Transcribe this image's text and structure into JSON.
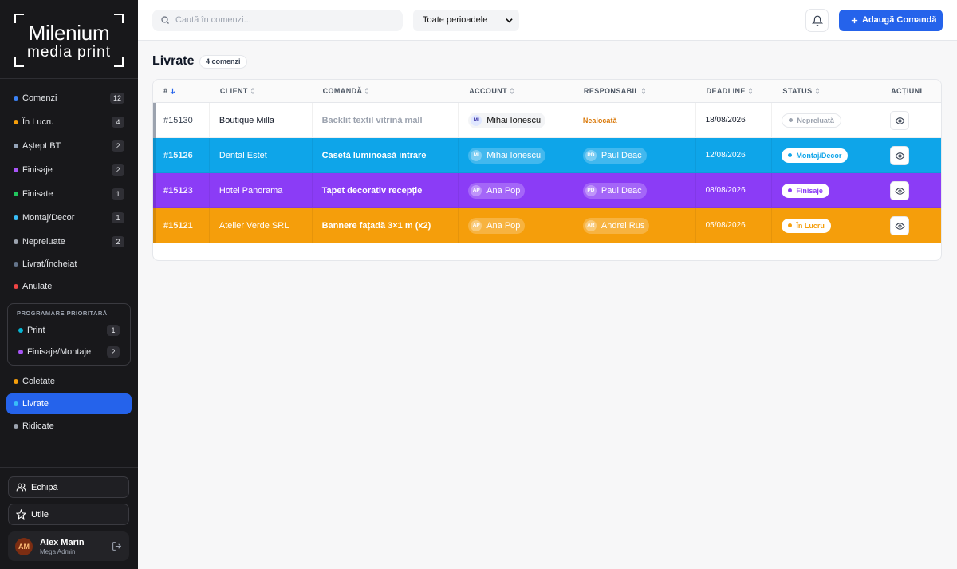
{
  "brand": {
    "line1": "Milenium",
    "line2": "media print"
  },
  "sidebar": {
    "items": [
      {
        "label": "Comenzi",
        "count": 12,
        "color": "#3b82f6"
      },
      {
        "label": "În Lucru",
        "count": 4,
        "color": "#f59e0b"
      },
      {
        "label": "Aștept BT",
        "count": 2,
        "color": "#94a3b8"
      },
      {
        "label": "Finisaje",
        "count": 2,
        "color": "#a855f7"
      },
      {
        "label": "Finisate",
        "count": 1,
        "color": "#22c55e"
      },
      {
        "label": "Montaj/Decor",
        "count": 1,
        "color": "#38bdf8"
      },
      {
        "label": "Nepreluate",
        "count": 2,
        "color": "#9ca3af"
      },
      {
        "label": "Livrat/Încheiat",
        "color": "#64748b"
      },
      {
        "label": "Anulate",
        "color": "#ef4444"
      }
    ],
    "priority": {
      "title": "PROGRAMARE PRIORITARĂ",
      "items": [
        {
          "label": "Print",
          "count": 1,
          "color": "#06b6d4"
        },
        {
          "label": "Finisaje/Montaje",
          "count": 2,
          "color": "#a855f7"
        }
      ]
    },
    "items2": [
      {
        "label": "Coletate",
        "color": "#f59e0b"
      },
      {
        "label": "Livrate",
        "color": "#38bdf8",
        "active": true
      },
      {
        "label": "Ridicate",
        "color": "#9ca3af"
      }
    ],
    "team": "Echipă",
    "useful": "Utile",
    "user": {
      "initials": "AM",
      "name": "Alex Marin",
      "role": "Mega Admin"
    }
  },
  "topbar": {
    "search_placeholder": "Caută în comenzi...",
    "period": "Toate perioadele",
    "add": "Adaugă Comandă"
  },
  "page": {
    "title": "Livrate",
    "count": "4 comenzi"
  },
  "table": {
    "headers": [
      "#",
      "CLIENT",
      "COMANDĂ",
      "ACCOUNT",
      "RESPONSABIL",
      "DEADLINE",
      "STATUS",
      "ACȚIUNI"
    ],
    "rows": [
      {
        "id": "#15130",
        "client": "Boutique Milla",
        "order": "Backlit textil vitrină mall",
        "account": {
          "initials": "MI",
          "name": "Mihai Ionescu"
        },
        "responsible": {
          "name": "Nealocată"
        },
        "deadline": "18/08/2026",
        "status": "Nepreluată",
        "color": "#ffffff",
        "status_color": "#9ca3af"
      },
      {
        "id": "#15126",
        "client": "Dental Estet",
        "order": "Casetă luminoasă intrare",
        "account": {
          "initials": "MI",
          "name": "Mihai Ionescu"
        },
        "responsible": {
          "initials": "PD",
          "name": "Paul Deac"
        },
        "deadline": "12/08/2026",
        "status": "Montaj/Decor",
        "color": "#0ea5e9",
        "status_color": "#0ea5e9"
      },
      {
        "id": "#15123",
        "client": "Hotel Panorama",
        "order": "Tapet decorativ recepție",
        "account": {
          "initials": "AP",
          "name": "Ana Pop"
        },
        "responsible": {
          "initials": "PD",
          "name": "Paul Deac"
        },
        "deadline": "08/08/2026",
        "status": "Finisaje",
        "color": "#8b3cf6",
        "status_color": "#8b3cf6"
      },
      {
        "id": "#15121",
        "client": "Atelier Verde SRL",
        "order": "Bannere fațadă 3×1 m (x2)",
        "account": {
          "initials": "AP",
          "name": "Ana Pop"
        },
        "responsible": {
          "initials": "AR",
          "name": "Andrei Rus"
        },
        "deadline": "05/08/2026",
        "status": "În Lucru",
        "color": "#f59e0b",
        "status_color": "#f59e0b"
      }
    ]
  }
}
